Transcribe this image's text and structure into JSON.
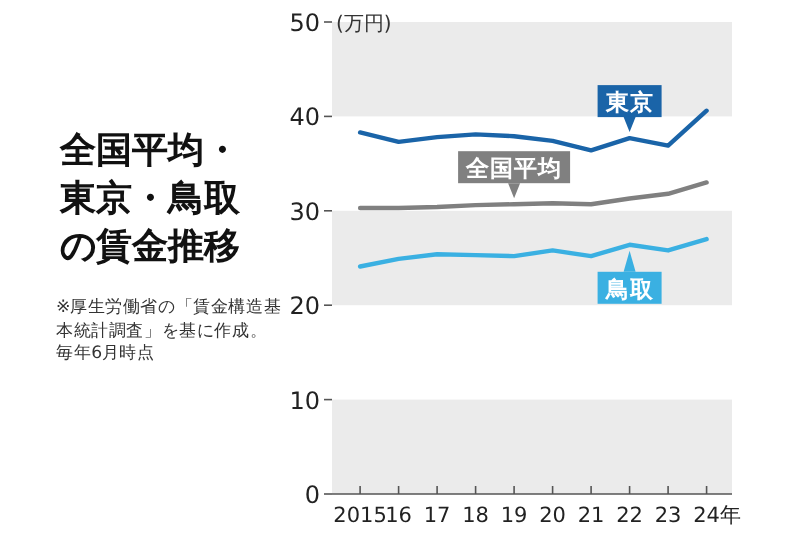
{
  "chart_data": {
    "type": "line",
    "title": "全国平均・東京・鳥取の賃金推移",
    "ylabel": "(万円)",
    "xlabel": "年",
    "annotations": [
      "※厚生労働省の「賃金構造基本統計調査」を基に作成。",
      "毎年6月時点"
    ],
    "x": [
      2015,
      2016,
      2017,
      2018,
      2019,
      2020,
      2021,
      2022,
      2023,
      2024
    ],
    "series": [
      {
        "name": "東京",
        "color": "#1a64a8",
        "values": [
          38.3,
          37.3,
          37.8,
          38.1,
          37.9,
          37.4,
          36.4,
          37.7,
          36.9,
          40.6
        ]
      },
      {
        "name": "全国平均",
        "color": "#808080",
        "values": [
          30.3,
          30.3,
          30.4,
          30.6,
          30.7,
          30.8,
          30.7,
          31.3,
          31.8,
          33.0
        ]
      },
      {
        "name": "鳥取",
        "color": "#3ab0e2",
        "values": [
          24.1,
          24.9,
          25.4,
          25.3,
          25.2,
          25.8,
          25.2,
          26.4,
          25.8,
          27.0
        ]
      }
    ],
    "xlim": [
      2014.27,
      2024.66
    ],
    "xticks": [
      {
        "value": 2015,
        "label": "2015"
      },
      {
        "value": 2016,
        "label": "16"
      },
      {
        "value": 2017,
        "label": "17"
      },
      {
        "value": 2018,
        "label": "18"
      },
      {
        "value": 2019,
        "label": "19"
      },
      {
        "value": 2020,
        "label": "20"
      },
      {
        "value": 2021,
        "label": "21"
      },
      {
        "value": 2022,
        "label": "22"
      },
      {
        "value": 2023,
        "label": "23"
      },
      {
        "value": 2024,
        "label": "24"
      }
    ],
    "ylim": [
      0,
      50
    ],
    "yticks": [
      0,
      10,
      20,
      30,
      40,
      50
    ],
    "bands": [
      {
        "axis": "y",
        "from": 0,
        "to": 10,
        "color": "#ebebeb"
      },
      {
        "axis": "y",
        "from": 20,
        "to": 30,
        "color": "#ebebeb"
      },
      {
        "axis": "y",
        "from": 40,
        "to": 50,
        "color": "#ebebeb"
      }
    ],
    "marker": "none",
    "line_style": "solid"
  }
}
